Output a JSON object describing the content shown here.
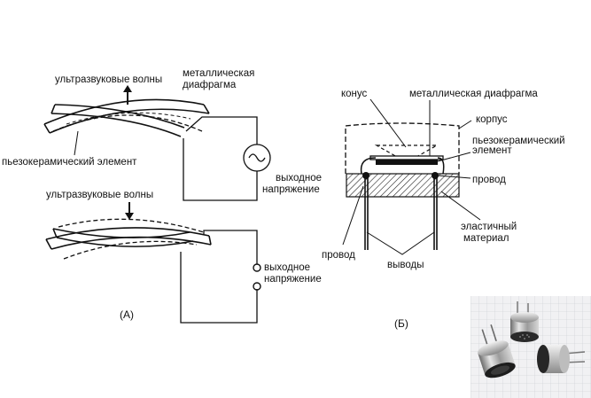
{
  "diagram_a": {
    "caption": "(A)",
    "top": {
      "waves_label": "ультразвуковые волны",
      "diaphragm_label_1": "металлическая",
      "diaphragm_label_2": "диафрагма",
      "piezo_label": "пьезокерамический элемент",
      "output_label_1": "выходное",
      "output_label_2": "напряжение"
    },
    "bottom": {
      "waves_label": "ультразвуковые волны",
      "output_label_1": "выходное",
      "output_label_2": "напряжение"
    }
  },
  "diagram_b": {
    "caption": "(Б)",
    "labels": {
      "cone": "конус",
      "diaphragm": "металлическая диафрагма",
      "housing": "корпус",
      "piezo_1": "пьезокерамический",
      "piezo_2": "элемент",
      "wire_right": "провод",
      "elastic_1": "эластичный",
      "elastic_2": "материал",
      "wire_left": "провод",
      "leads": "выводы"
    }
  }
}
